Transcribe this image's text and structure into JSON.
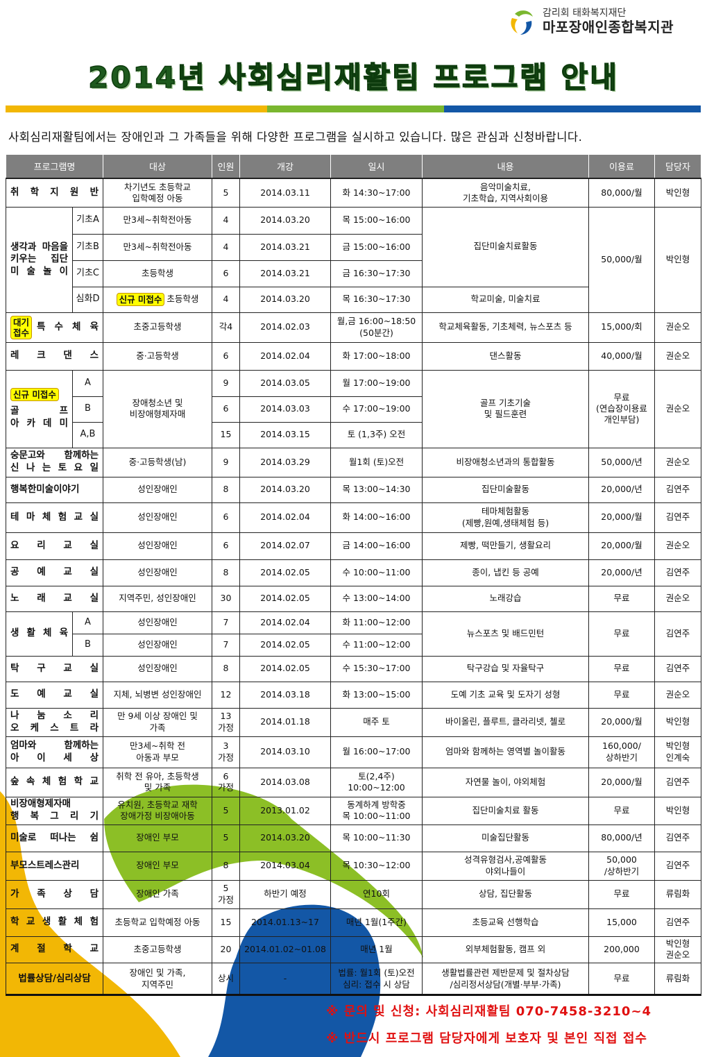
{
  "logo": {
    "sub": "감리회 태화복지재단",
    "main": "마포장애인종합복지관"
  },
  "title": "2014년 사회심리재활팀 프로그램 안내",
  "colors": {
    "bar_yellow": "#f2b705",
    "bar_green": "#7ab72f",
    "bar_blue": "#1357a6",
    "title_green": "#1e5a1e",
    "badge_yellow": "#ffff00",
    "footer_red": "#e01010",
    "header_gray": "#7f7f7f"
  },
  "subtitle": "사회심리재활팀에서는 장애인과 그 가족들을 위해 다양한 프로그램을 실시하고 있습니다. 많은 관심과 신청바랍니다.",
  "table": {
    "headers": [
      "프로그램명",
      "대상",
      "인원",
      "개강",
      "일시",
      "내용",
      "이용료",
      "담당자"
    ],
    "rows": [
      [
        {
          "t": "취 학 지 원 반",
          "cs": 2,
          "c": "nm"
        },
        {
          "t": "차기년도 초등학교\n입학예정 아동"
        },
        {
          "t": "5"
        },
        {
          "t": "2014.03.11"
        },
        {
          "t": "화 14:30~17:00"
        },
        {
          "t": "음악미술치료,\n기초학습, 지역사회이용"
        },
        {
          "t": "80,000/월"
        },
        {
          "t": "박인형"
        }
      ],
      [
        {
          "t": "생각과 마음을\n키우는 집단\n미 술 놀 이",
          "rs": 4,
          "c": "nm"
        },
        {
          "t": "기초A",
          "c": "sub"
        },
        {
          "t": "만3세~취학전아동"
        },
        {
          "t": "4"
        },
        {
          "t": "2014.03.20"
        },
        {
          "t": "목 15:00~16:00"
        },
        {
          "t": "집단미술치료활동",
          "rs": 3
        },
        {
          "t": "50,000/월",
          "rs": 4
        },
        {
          "t": "박인형",
          "rs": 4
        }
      ],
      [
        {
          "t": "기초B",
          "c": "sub"
        },
        {
          "t": "만3세~취학전아동"
        },
        {
          "t": "4"
        },
        {
          "t": "2014.03.21"
        },
        {
          "t": "금 15:00~16:00"
        }
      ],
      [
        {
          "t": "기초C",
          "c": "sub"
        },
        {
          "t": "초등학생"
        },
        {
          "t": "6"
        },
        {
          "t": "2014.03.21"
        },
        {
          "t": "금 16:30~17:30"
        }
      ],
      [
        {
          "t": "심화D",
          "c": "sub"
        },
        {
          "t": "초등학생",
          "badge": "신규 미접수"
        },
        {
          "t": "4"
        },
        {
          "t": "2014.03.20"
        },
        {
          "t": "목 16:30~17:30"
        },
        {
          "t": "학교미술, 미술치료"
        }
      ],
      [
        {
          "t": "특 수 체 육",
          "cs": 2,
          "c": "nm",
          "badge": "대기\n접수"
        },
        {
          "t": "초중고등학생"
        },
        {
          "t": "각4"
        },
        {
          "t": "2014.02.03"
        },
        {
          "t": "월,금 16:00~18:50\n(50분간)"
        },
        {
          "t": "학교체육활동, 기초체력, 뉴스포츠 등"
        },
        {
          "t": "15,000/회"
        },
        {
          "t": "권순오"
        }
      ],
      [
        {
          "t": "레 크 댄 스",
          "cs": 2,
          "c": "nm"
        },
        {
          "t": "중·고등학생"
        },
        {
          "t": "6"
        },
        {
          "t": "2014.02.04"
        },
        {
          "t": "화 17:00~18:00"
        },
        {
          "t": "댄스활동"
        },
        {
          "t": "40,000/월"
        },
        {
          "t": "권순오"
        }
      ],
      [
        {
          "t": "골 프\n아 카 데 미",
          "rs": 3,
          "c": "nm",
          "badgeTop": "신규 미접수"
        },
        {
          "t": "A",
          "c": "sub"
        },
        {
          "t": "장애청소년 및\n비장애형제자매",
          "rs": 3
        },
        {
          "t": "9"
        },
        {
          "t": "2014.03.05"
        },
        {
          "t": "월 17:00~19:00"
        },
        {
          "t": "골프 기초기술\n및 필드훈련",
          "rs": 3
        },
        {
          "t": "무료\n(연습장이용료\n개인부담)",
          "rs": 3
        },
        {
          "t": "권순오",
          "rs": 3
        }
      ],
      [
        {
          "t": "B",
          "c": "sub"
        },
        {
          "t": "6"
        },
        {
          "t": "2014.03.03"
        },
        {
          "t": "수 17:00~19:00"
        }
      ],
      [
        {
          "t": "A,B",
          "c": "sub"
        },
        {
          "t": "15"
        },
        {
          "t": "2014.03.15"
        },
        {
          "t": "토 (1,3주) 오전"
        }
      ],
      [
        {
          "t": "숭문고와 함께하는\n신 나 는  토 요 일",
          "cs": 2,
          "c": "nm"
        },
        {
          "t": "중·고등학생(남)"
        },
        {
          "t": "9"
        },
        {
          "t": "2014.03.29"
        },
        {
          "t": "월1회 (토)오전"
        },
        {
          "t": "비장애청소년과의 통합활동"
        },
        {
          "t": "50,000/년"
        },
        {
          "t": "권순오"
        }
      ],
      [
        {
          "t": "행복한미술이야기",
          "cs": 2,
          "c": "nm"
        },
        {
          "t": "성인장애인"
        },
        {
          "t": "8"
        },
        {
          "t": "2014.03.20"
        },
        {
          "t": "목 13:00~14:30"
        },
        {
          "t": "집단미술활동"
        },
        {
          "t": "20,000/년"
        },
        {
          "t": "김연주"
        }
      ],
      [
        {
          "t": "테 마 체 험 교 실",
          "cs": 2,
          "c": "nm"
        },
        {
          "t": "성인장애인"
        },
        {
          "t": "6"
        },
        {
          "t": "2014.02.04"
        },
        {
          "t": "화 14:00~16:00"
        },
        {
          "t": "테마체험활동\n(제빵,원예,생태체험 등)"
        },
        {
          "t": "20,000/월"
        },
        {
          "t": "김연주"
        }
      ],
      [
        {
          "t": "요 리 교 실",
          "cs": 2,
          "c": "nm"
        },
        {
          "t": "성인장애인"
        },
        {
          "t": "6"
        },
        {
          "t": "2014.02.07"
        },
        {
          "t": "금 14:00~16:00"
        },
        {
          "t": "제빵, 떡만들기, 생활요리"
        },
        {
          "t": "20,000/월"
        },
        {
          "t": "권순오"
        }
      ],
      [
        {
          "t": "공 예 교 실",
          "cs": 2,
          "c": "nm"
        },
        {
          "t": "성인장애인"
        },
        {
          "t": "8"
        },
        {
          "t": "2014.02.05"
        },
        {
          "t": "수 10:00~11:00"
        },
        {
          "t": "종이, 냅킨 등 공예"
        },
        {
          "t": "20,000/년"
        },
        {
          "t": "김연주"
        }
      ],
      [
        {
          "t": "노 래 교 실",
          "cs": 2,
          "c": "nm"
        },
        {
          "t": "지역주민, 성인장애인"
        },
        {
          "t": "30"
        },
        {
          "t": "2014.02.05"
        },
        {
          "t": "수 13:00~14:00"
        },
        {
          "t": "노래강습"
        },
        {
          "t": "무료"
        },
        {
          "t": "권순오"
        }
      ],
      [
        {
          "t": "생 활 체 육",
          "rs": 2,
          "c": "nm"
        },
        {
          "t": "A",
          "c": "sub"
        },
        {
          "t": "성인장애인"
        },
        {
          "t": "7"
        },
        {
          "t": "2014.02.04"
        },
        {
          "t": "화 11:00~12:00"
        },
        {
          "t": "뉴스포츠 및 배드민턴",
          "rs": 2
        },
        {
          "t": "무료",
          "rs": 2
        },
        {
          "t": "김연주",
          "rs": 2
        }
      ],
      [
        {
          "t": "B",
          "c": "sub"
        },
        {
          "t": "성인장애인"
        },
        {
          "t": "7"
        },
        {
          "t": "2014.02.05"
        },
        {
          "t": "수 11:00~12:00"
        }
      ],
      [
        {
          "t": "탁 구 교 실",
          "cs": 2,
          "c": "nm"
        },
        {
          "t": "성인장애인"
        },
        {
          "t": "8"
        },
        {
          "t": "2014.02.05"
        },
        {
          "t": "수 15:30~17:00"
        },
        {
          "t": "탁구강습 및 자율탁구"
        },
        {
          "t": "무료"
        },
        {
          "t": "김연주"
        }
      ],
      [
        {
          "t": "도 예 교 실",
          "cs": 2,
          "c": "nm"
        },
        {
          "t": "지체, 뇌병변 성인장애인"
        },
        {
          "t": "12"
        },
        {
          "t": "2014.03.18"
        },
        {
          "t": "화 13:00~15:00"
        },
        {
          "t": "도예 기초 교육 및 도자기 성형"
        },
        {
          "t": "무료"
        },
        {
          "t": "권순오"
        }
      ],
      [
        {
          "t": "나 눔 소 리\n오 케 스 트 라",
          "cs": 2,
          "c": "nm"
        },
        {
          "t": "만 9세 이상 장애인 및\n가족"
        },
        {
          "t": "13\n가정"
        },
        {
          "t": "2014.01.18"
        },
        {
          "t": "매주 토"
        },
        {
          "t": "바이올린, 플루트, 클라리넷, 첼로"
        },
        {
          "t": "20,000/월"
        },
        {
          "t": "박인형"
        }
      ],
      [
        {
          "t": "엄마와 함께하는\n아 이 세 상",
          "cs": 2,
          "c": "nm"
        },
        {
          "t": "만3세~취학 전\n아동과 부모"
        },
        {
          "t": "3\n가정"
        },
        {
          "t": "2014.03.10"
        },
        {
          "t": "월 16:00~17:00"
        },
        {
          "t": "엄마와 함께하는 영역별 놀이활동"
        },
        {
          "t": "160,000/\n상하반기"
        },
        {
          "t": "박인형\n인계숙"
        }
      ],
      [
        {
          "t": "숲 속 체 험 학 교",
          "cs": 2,
          "c": "nm"
        },
        {
          "t": "취학 전 유아, 초등학생\n및 가족"
        },
        {
          "t": "6\n가정"
        },
        {
          "t": "2014.03.08"
        },
        {
          "t": "토(2,4주)\n10:00~12:00"
        },
        {
          "t": "자연물 놀이, 야외체험"
        },
        {
          "t": "20,000/월"
        },
        {
          "t": "김연주"
        }
      ],
      [
        {
          "t": "비장애형제자매\n행 복 그 리 기",
          "cs": 2,
          "c": "nm"
        },
        {
          "t": "유치원, 초등학교 재학\n장애가정 비장애아동"
        },
        {
          "t": "5"
        },
        {
          "t": "2013.01.02"
        },
        {
          "t": "동계하계 방학중\n목 10:00~11:00"
        },
        {
          "t": "집단미술치료 활동"
        },
        {
          "t": "무료"
        },
        {
          "t": "박인형"
        }
      ],
      [
        {
          "t": "미술로 떠나는 쉼",
          "cs": 2,
          "c": "nm"
        },
        {
          "t": "장애인 부모"
        },
        {
          "t": "5"
        },
        {
          "t": "2014.03.20"
        },
        {
          "t": "목 10:00~11:30"
        },
        {
          "t": "미술집단활동"
        },
        {
          "t": "80,000/년"
        },
        {
          "t": "김연주"
        }
      ],
      [
        {
          "t": "부모스트레스관리",
          "cs": 2,
          "c": "nm"
        },
        {
          "t": "장애인 부모"
        },
        {
          "t": "8"
        },
        {
          "t": "2014.03.04"
        },
        {
          "t": "목 10:30~12:00"
        },
        {
          "t": "성격유형검사,공예활동\n야외나들이"
        },
        {
          "t": "50,000\n/상하반기"
        },
        {
          "t": "김연주"
        }
      ],
      [
        {
          "t": "가 족 상 담",
          "cs": 2,
          "c": "nm"
        },
        {
          "t": "장애인 가족"
        },
        {
          "t": "5\n가정"
        },
        {
          "t": "하반기 예정"
        },
        {
          "t": "연10회"
        },
        {
          "t": "상담, 집단활동"
        },
        {
          "t": "무료"
        },
        {
          "t": "류림화"
        }
      ],
      [
        {
          "t": "학 교 생 활 체 험",
          "cs": 2,
          "c": "nm"
        },
        {
          "t": "초등학교 입학예정 아동"
        },
        {
          "t": "15"
        },
        {
          "t": "2014.01.13~17"
        },
        {
          "t": "매년 1월(1주간)"
        },
        {
          "t": "초등교육 선행학습"
        },
        {
          "t": "15,000"
        },
        {
          "t": "김연주"
        }
      ],
      [
        {
          "t": "계 절 학 교",
          "cs": 2,
          "c": "nm"
        },
        {
          "t": "초중고등학생"
        },
        {
          "t": "20"
        },
        {
          "t": "2014.01.02~01.08"
        },
        {
          "t": "매년 1월"
        },
        {
          "t": "외부체험활동, 캠프 외"
        },
        {
          "t": "200,000"
        },
        {
          "t": "박인형\n권순오"
        }
      ],
      [
        {
          "t": "법률상담/심리상담",
          "cs": 2,
          "c": "nm c"
        },
        {
          "t": "장애인 및 가족,\n지역주민"
        },
        {
          "t": "상시"
        },
        {
          "t": "-"
        },
        {
          "t": "법률: 월1회 (토)오전\n심리: 접수 시 상담"
        },
        {
          "t": "생활법률관련 제반문제 및 절차상담\n/심리정서상담(개별·부부·가족)"
        },
        {
          "t": "무료"
        },
        {
          "t": "류림화"
        }
      ]
    ]
  },
  "footer": {
    "line1": "※ 문의 및 신청: 사회심리재활팀 070-7458-3210~4",
    "line2": "※ 반드시 프로그램 담당자에게 보호자 및 본인 직접 접수"
  }
}
